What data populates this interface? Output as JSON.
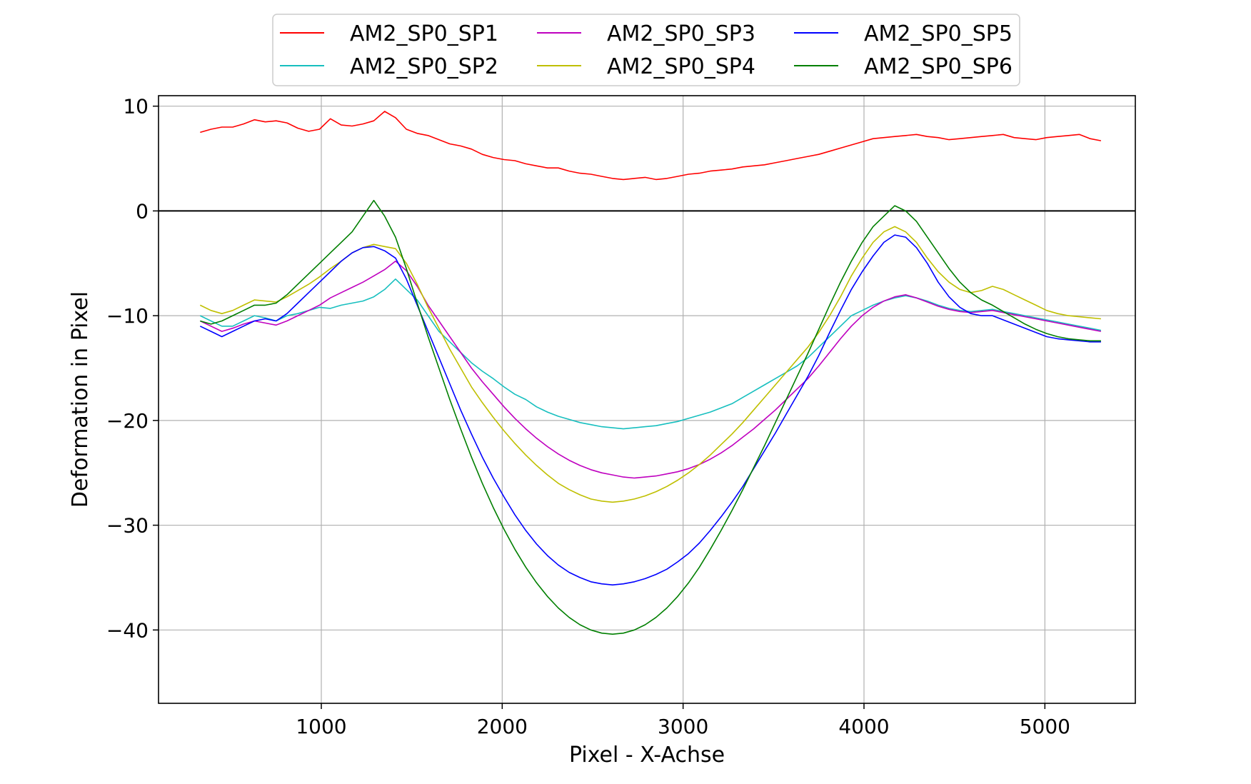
{
  "chart_data": {
    "type": "line",
    "xlabel": "Pixel - X-Achse",
    "ylabel": "Deformation in Pixel",
    "xlim": [
      100,
      5500
    ],
    "ylim": [
      -47,
      11
    ],
    "x_ticks": [
      1000,
      2000,
      3000,
      4000,
      5000
    ],
    "x_tick_labels": [
      "1000",
      "2000",
      "3000",
      "4000",
      "5000"
    ],
    "y_ticks": [
      10,
      0,
      -10,
      -20,
      -30,
      -40
    ],
    "y_tick_labels": [
      "10",
      "0",
      "−10",
      "−20",
      "−30",
      "−40"
    ],
    "grid": true,
    "reference_line": {
      "y": 0,
      "color": "#000000"
    },
    "legend_position": "top-center",
    "x_start": 330,
    "x_step": 60,
    "series": [
      {
        "name": "AM2_SP0_SP1",
        "color": "#ff0000",
        "values": [
          7.5,
          7.8,
          8,
          8,
          8.3,
          8.7,
          8.5,
          8.6,
          8.4,
          7.9,
          7.6,
          7.8,
          8.8,
          8.2,
          8.1,
          8.3,
          8.6,
          9.5,
          8.9,
          7.8,
          7.4,
          7.2,
          6.8,
          6.4,
          6.2,
          5.9,
          5.4,
          5.1,
          4.9,
          4.8,
          4.5,
          4.3,
          4.1,
          4.1,
          3.8,
          3.6,
          3.5,
          3.3,
          3.1,
          3.0,
          3.1,
          3.2,
          3.0,
          3.1,
          3.3,
          3.5,
          3.6,
          3.8,
          3.9,
          4.0,
          4.2,
          4.3,
          4.4,
          4.6,
          4.8,
          5.0,
          5.2,
          5.4,
          5.7,
          6.0,
          6.3,
          6.6,
          6.9,
          7.0,
          7.1,
          7.2,
          7.3,
          7.1,
          7.0,
          6.8,
          6.9,
          7.0,
          7.1,
          7.2,
          7.3,
          7.0,
          6.9,
          6.8,
          7.0,
          7.1,
          7.2,
          7.3,
          6.9,
          6.7
        ]
      },
      {
        "name": "AM2_SP0_SP2",
        "color": "#17bfbf",
        "values": [
          -10,
          -10.5,
          -11,
          -11,
          -10.5,
          -10,
          -10.2,
          -10.5,
          -10,
          -9.8,
          -9.5,
          -9.2,
          -9.3,
          -9.0,
          -8.8,
          -8.6,
          -8.2,
          -7.5,
          -6.5,
          -7.5,
          -8.5,
          -10,
          -11.5,
          -12.5,
          -13.5,
          -14.5,
          -15.3,
          -16,
          -16.8,
          -17.5,
          -18,
          -18.7,
          -19.2,
          -19.6,
          -19.9,
          -20.2,
          -20.4,
          -20.6,
          -20.7,
          -20.8,
          -20.7,
          -20.6,
          -20.5,
          -20.3,
          -20.1,
          -19.8,
          -19.5,
          -19.2,
          -18.8,
          -18.4,
          -17.8,
          -17.2,
          -16.6,
          -16.0,
          -15.4,
          -14.8,
          -14.0,
          -13.0,
          -12.0,
          -11.0,
          -10.0,
          -9.5,
          -9.0,
          -8.6,
          -8.3,
          -8.1,
          -8.3,
          -8.6,
          -9.0,
          -9.3,
          -9.5,
          -9.6,
          -9.5,
          -9.4,
          -9.6,
          -9.8,
          -10.0,
          -10.2,
          -10.4,
          -10.6,
          -10.8,
          -11.0,
          -11.2,
          -11.4
        ]
      },
      {
        "name": "AM2_SP0_SP3",
        "color": "#bf00bf",
        "values": [
          -10.5,
          -11,
          -11.5,
          -11.2,
          -10.8,
          -10.5,
          -10.7,
          -10.9,
          -10.5,
          -10.0,
          -9.5,
          -9.0,
          -8.3,
          -7.8,
          -7.3,
          -6.8,
          -6.2,
          -5.6,
          -4.8,
          -5.7,
          -7.2,
          -9.0,
          -10.5,
          -12.0,
          -13.5,
          -15.0,
          -16.3,
          -17.5,
          -18.7,
          -19.8,
          -20.8,
          -21.7,
          -22.5,
          -23.2,
          -23.8,
          -24.3,
          -24.7,
          -25.0,
          -25.2,
          -25.4,
          -25.5,
          -25.4,
          -25.3,
          -25.1,
          -24.9,
          -24.6,
          -24.2,
          -23.7,
          -23.1,
          -22.4,
          -21.6,
          -20.8,
          -19.9,
          -19.0,
          -18.0,
          -17.0,
          -16.0,
          -14.8,
          -13.5,
          -12.2,
          -11.0,
          -10.0,
          -9.2,
          -8.6,
          -8.2,
          -8.0,
          -8.3,
          -8.7,
          -9.1,
          -9.4,
          -9.6,
          -9.7,
          -9.6,
          -9.5,
          -9.7,
          -9.9,
          -10.1,
          -10.3,
          -10.5,
          -10.7,
          -10.9,
          -11.1,
          -11.3,
          -11.5
        ]
      },
      {
        "name": "AM2_SP0_SP4",
        "color": "#bfbf00",
        "values": [
          -9.0,
          -9.5,
          -9.8,
          -9.5,
          -9.0,
          -8.5,
          -8.6,
          -8.7,
          -8.2,
          -7.6,
          -7.0,
          -6.3,
          -5.5,
          -4.8,
          -4.0,
          -3.5,
          -3.2,
          -3.4,
          -3.6,
          -5.0,
          -7.0,
          -9.2,
          -11.2,
          -13.2,
          -15.0,
          -16.8,
          -18.3,
          -19.7,
          -21.0,
          -22.2,
          -23.3,
          -24.3,
          -25.2,
          -26.0,
          -26.6,
          -27.1,
          -27.5,
          -27.7,
          -27.8,
          -27.7,
          -27.5,
          -27.2,
          -26.8,
          -26.3,
          -25.7,
          -25.0,
          -24.2,
          -23.3,
          -22.3,
          -21.3,
          -20.2,
          -19.0,
          -17.8,
          -16.6,
          -15.4,
          -14.2,
          -13.0,
          -11.6,
          -10.0,
          -8.2,
          -6.2,
          -4.5,
          -3.0,
          -2.0,
          -1.5,
          -2.0,
          -3.0,
          -4.5,
          -5.8,
          -6.8,
          -7.5,
          -7.8,
          -7.6,
          -7.2,
          -7.5,
          -8.0,
          -8.5,
          -9.0,
          -9.5,
          -9.8,
          -10.0,
          -10.1,
          -10.2,
          -10.3
        ]
      },
      {
        "name": "AM2_SP0_SP5",
        "color": "#0000ff",
        "values": [
          -11,
          -11.5,
          -12,
          -11.5,
          -11,
          -10.5,
          -10.3,
          -10.5,
          -9.8,
          -8.8,
          -7.8,
          -6.8,
          -5.8,
          -4.8,
          -4.0,
          -3.5,
          -3.4,
          -3.8,
          -4.5,
          -6.5,
          -9.0,
          -11.5,
          -14.0,
          -16.5,
          -19.0,
          -21.3,
          -23.5,
          -25.5,
          -27.3,
          -29.0,
          -30.5,
          -31.8,
          -32.9,
          -33.8,
          -34.5,
          -35.0,
          -35.4,
          -35.6,
          -35.7,
          -35.6,
          -35.4,
          -35.1,
          -34.7,
          -34.2,
          -33.5,
          -32.7,
          -31.7,
          -30.5,
          -29.2,
          -27.8,
          -26.3,
          -24.6,
          -22.9,
          -21.2,
          -19.4,
          -17.6,
          -15.8,
          -13.8,
          -11.6,
          -9.5,
          -7.5,
          -5.8,
          -4.3,
          -3.0,
          -2.3,
          -2.5,
          -3.5,
          -5.0,
          -6.8,
          -8.2,
          -9.2,
          -9.8,
          -10.0,
          -10.0,
          -10.4,
          -10.8,
          -11.2,
          -11.6,
          -12.0,
          -12.2,
          -12.3,
          -12.4,
          -12.5,
          -12.5
        ]
      },
      {
        "name": "AM2_SP0_SP6",
        "color": "#007f00",
        "values": [
          -10.5,
          -10.8,
          -10.5,
          -10.0,
          -9.5,
          -9.0,
          -9.0,
          -8.8,
          -8.0,
          -7.0,
          -6.0,
          -5.0,
          -4.0,
          -3.0,
          -2.0,
          -0.5,
          1.0,
          -0.5,
          -2.5,
          -5.5,
          -8.8,
          -12.0,
          -15.0,
          -18.0,
          -20.8,
          -23.5,
          -26.0,
          -28.3,
          -30.4,
          -32.3,
          -34.0,
          -35.5,
          -36.8,
          -37.9,
          -38.8,
          -39.5,
          -40.0,
          -40.3,
          -40.4,
          -40.3,
          -40.0,
          -39.5,
          -38.8,
          -37.9,
          -36.8,
          -35.5,
          -34.0,
          -32.3,
          -30.5,
          -28.6,
          -26.6,
          -24.5,
          -22.4,
          -20.2,
          -18.0,
          -15.8,
          -13.6,
          -11.3,
          -9.0,
          -6.8,
          -4.8,
          -3.0,
          -1.5,
          -0.5,
          0.5,
          0.0,
          -1.0,
          -2.5,
          -4.0,
          -5.5,
          -6.8,
          -7.8,
          -8.5,
          -9.0,
          -9.6,
          -10.2,
          -10.8,
          -11.3,
          -11.7,
          -12.0,
          -12.2,
          -12.3,
          -12.4,
          -12.4
        ]
      }
    ]
  }
}
